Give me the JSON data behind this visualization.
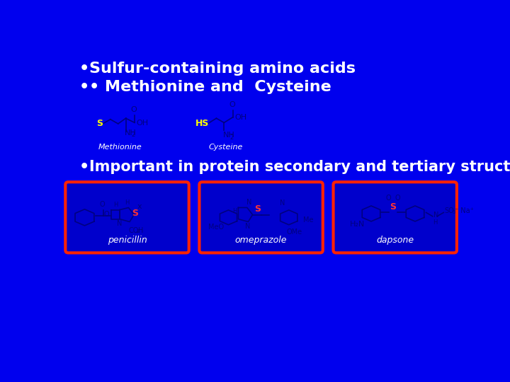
{
  "background_color": "#0000EE",
  "bullet1": "Sulfur-containing amino acids",
  "bullet2": "• Methionine and  Cysteine",
  "bullet3": "Important in protein secondary and tertiary structure",
  "text_color": "#FFFFFF",
  "title_fontsize": 16,
  "body_fontsize": 15,
  "box_labels": [
    "penicillin",
    "omeprazole",
    "dapsone"
  ],
  "mol_color": "#000080",
  "sulfur_color": "#FFFF00",
  "s_box_color": "#FF2200",
  "box_face": "#0000CC"
}
